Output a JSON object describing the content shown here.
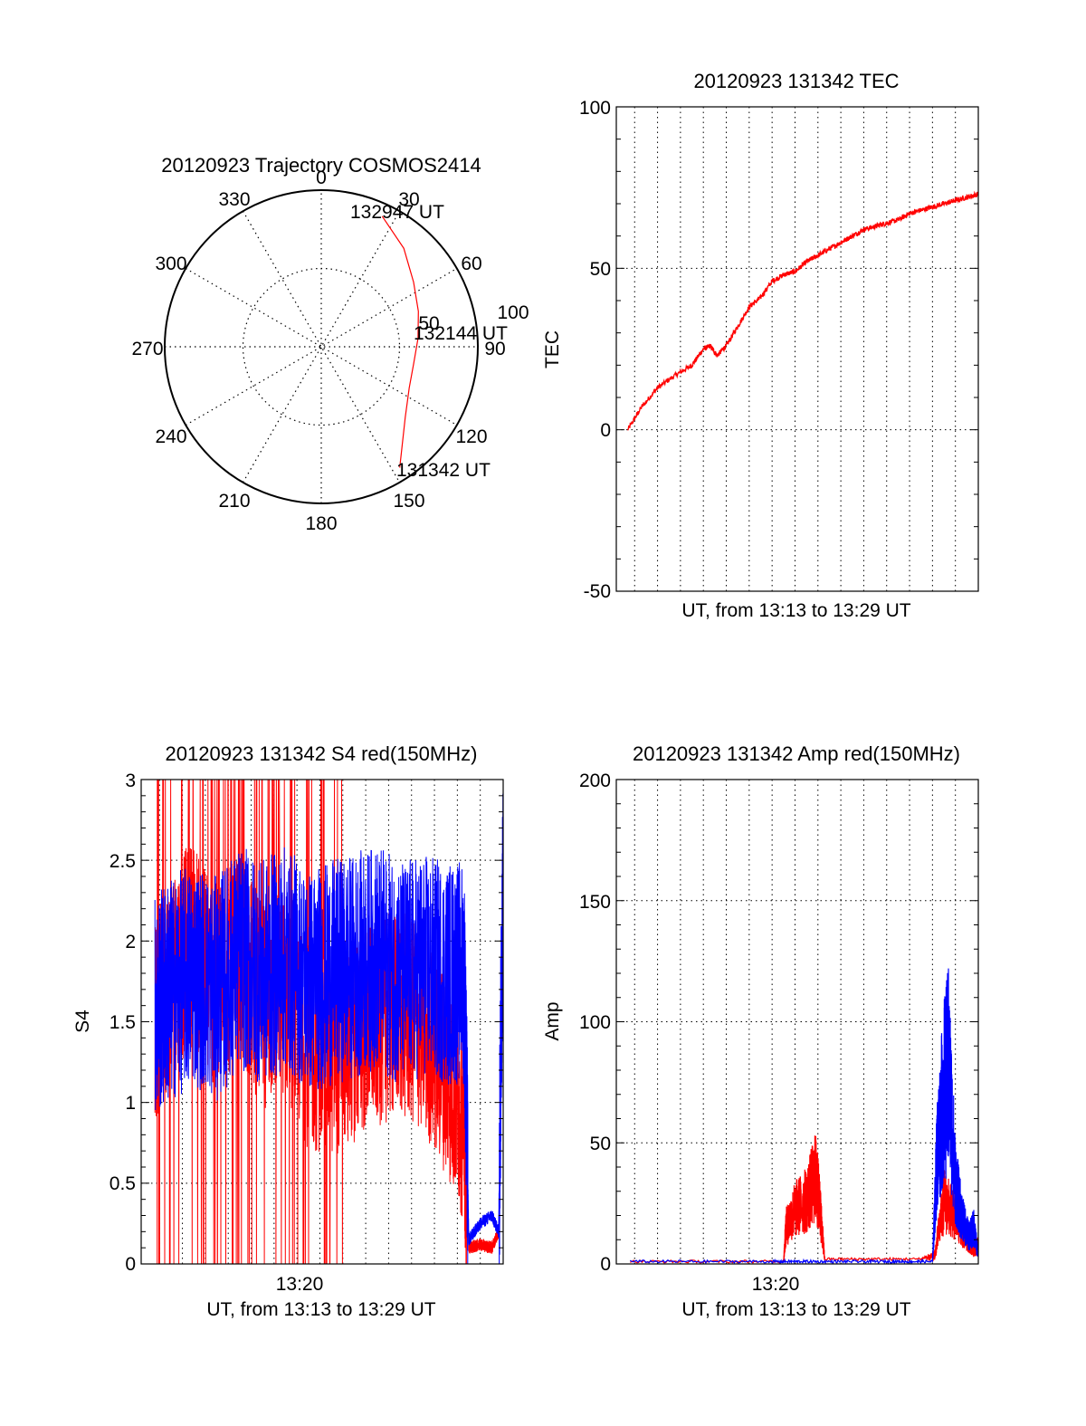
{
  "colors": {
    "red": "#ff0000",
    "blue": "#0000ff",
    "axis": "#000000",
    "grid": "#000000"
  },
  "chart_data": [
    {
      "id": "trajectory",
      "type": "polar",
      "title": "20120923 Trajectory COSMOS2414",
      "angle_labels": [
        "0",
        "30",
        "60",
        "90",
        "120",
        "150",
        "180",
        "210",
        "240",
        "270",
        "300",
        "330"
      ],
      "radial_ticks": [
        "50",
        "100"
      ],
      "rlim": [
        0,
        100
      ],
      "grid": true,
      "track": {
        "color": "red",
        "points": [
          [
            147,
            92
          ],
          [
            130,
            70
          ],
          [
            115,
            62
          ],
          [
            100,
            60
          ],
          [
            85,
            62
          ],
          [
            70,
            66
          ],
          [
            55,
            72
          ],
          [
            40,
            82
          ],
          [
            25,
            92
          ]
        ]
      },
      "annotations": [
        {
          "text": "131342 UT",
          "az": 147,
          "r": 92
        },
        {
          "text": "132144 UT",
          "az": 85,
          "r": 62
        },
        {
          "text": "132947 UT",
          "az": 25,
          "r": 92
        }
      ]
    },
    {
      "id": "tec",
      "type": "line",
      "title": "20120923 131342 TEC",
      "ylabel": "TEC",
      "xlabel": "UT, from 13:13 to 13:29 UT",
      "xlim": [
        13.2,
        29.0
      ],
      "ylim": [
        -50,
        100
      ],
      "yticks": [
        "-50",
        "0",
        "50",
        "100"
      ],
      "xticks": [],
      "grid": true,
      "series": [
        {
          "color": "red",
          "x": [
            13.7,
            14.3,
            15.0,
            15.8,
            16.5,
            17.0,
            17.3,
            17.6,
            18.0,
            18.5,
            19.0,
            19.5,
            20.0,
            20.5,
            21.0,
            21.5,
            22.0,
            22.5,
            23.0,
            23.5,
            24.0,
            24.5,
            25.0,
            25.5,
            26.0,
            26.5,
            27.0,
            27.5,
            28.0,
            28.5,
            29.0
          ],
          "y": [
            0,
            7,
            13,
            17,
            20,
            25,
            26,
            23,
            26,
            32,
            38,
            41,
            46,
            48,
            49,
            52,
            54,
            56,
            58,
            60,
            62,
            63,
            64,
            65,
            67,
            68,
            69,
            70,
            71,
            72,
            73
          ]
        }
      ]
    },
    {
      "id": "s4",
      "type": "line",
      "title": "20120923 131342 S4 red(150MHz)",
      "ylabel": "S4",
      "xlabel": "UT, from 13:13 to 13:29 UT",
      "xlim": [
        13.2,
        29.0
      ],
      "ylim": [
        0,
        3
      ],
      "yticks": [
        "0",
        "0.5",
        "1",
        "1.5",
        "2",
        "2.5",
        "3"
      ],
      "xticks": [
        {
          "value": 20.0,
          "label": "13:20"
        }
      ],
      "grid": true,
      "series": [
        {
          "color": "red",
          "x": [
            13.8,
            14.5,
            15.5,
            16.5,
            17.5,
            18.5,
            19.5,
            20.5,
            21.5,
            22.5,
            23.5,
            24.5,
            25.5,
            26.5,
            27.3,
            27.5,
            28.0,
            28.5,
            28.8
          ],
          "y": [
            1.5,
            1.8,
            2.0,
            1.7,
            1.9,
            1.6,
            1.7,
            1.35,
            1.3,
            1.4,
            1.5,
            1.55,
            1.45,
            1.2,
            0.9,
            0.1,
            0.12,
            0.1,
            0.2
          ]
        },
        {
          "color": "blue",
          "x": [
            13.8,
            14.5,
            15.5,
            16.5,
            17.5,
            18.5,
            19.5,
            20.5,
            21.5,
            22.5,
            23.5,
            24.5,
            25.5,
            26.5,
            27.3,
            27.5,
            28.0,
            28.5,
            28.8,
            29.0
          ],
          "y": [
            1.6,
            1.7,
            1.8,
            1.7,
            1.9,
            1.8,
            1.9,
            1.75,
            1.8,
            1.85,
            1.9,
            1.8,
            1.85,
            1.8,
            1.8,
            0.15,
            0.25,
            0.3,
            0.2,
            2.5
          ]
        }
      ]
    },
    {
      "id": "amp",
      "type": "line",
      "title": "20120923 131342 Amp red(150MHz)",
      "ylabel": "Amp",
      "xlabel": "UT, from 13:13 to 13:29 UT",
      "xlim": [
        13.2,
        29.0
      ],
      "ylim": [
        0,
        200
      ],
      "yticks": [
        "0",
        "50",
        "100",
        "150",
        "200"
      ],
      "xticks": [
        {
          "value": 20.0,
          "label": "13:20"
        }
      ],
      "grid": true,
      "series": [
        {
          "color": "red",
          "x": [
            13.8,
            20.5,
            20.6,
            21.0,
            21.5,
            21.9,
            22.1,
            22.3,
            26.5,
            27.0,
            27.1,
            27.5,
            28.0,
            28.5,
            28.8,
            29.0
          ],
          "y": [
            1,
            1,
            20,
            30,
            35,
            48,
            30,
            2,
            2,
            4,
            5,
            35,
            25,
            15,
            8,
            10
          ]
        },
        {
          "color": "blue",
          "x": [
            13.8,
            20.0,
            22.0,
            25.0,
            27.0,
            27.2,
            27.5,
            27.7,
            28.0,
            28.3,
            28.6,
            28.8,
            29.0
          ],
          "y": [
            1,
            1,
            1,
            1,
            1,
            60,
            95,
            108,
            45,
            25,
            15,
            20,
            5
          ]
        }
      ]
    }
  ]
}
